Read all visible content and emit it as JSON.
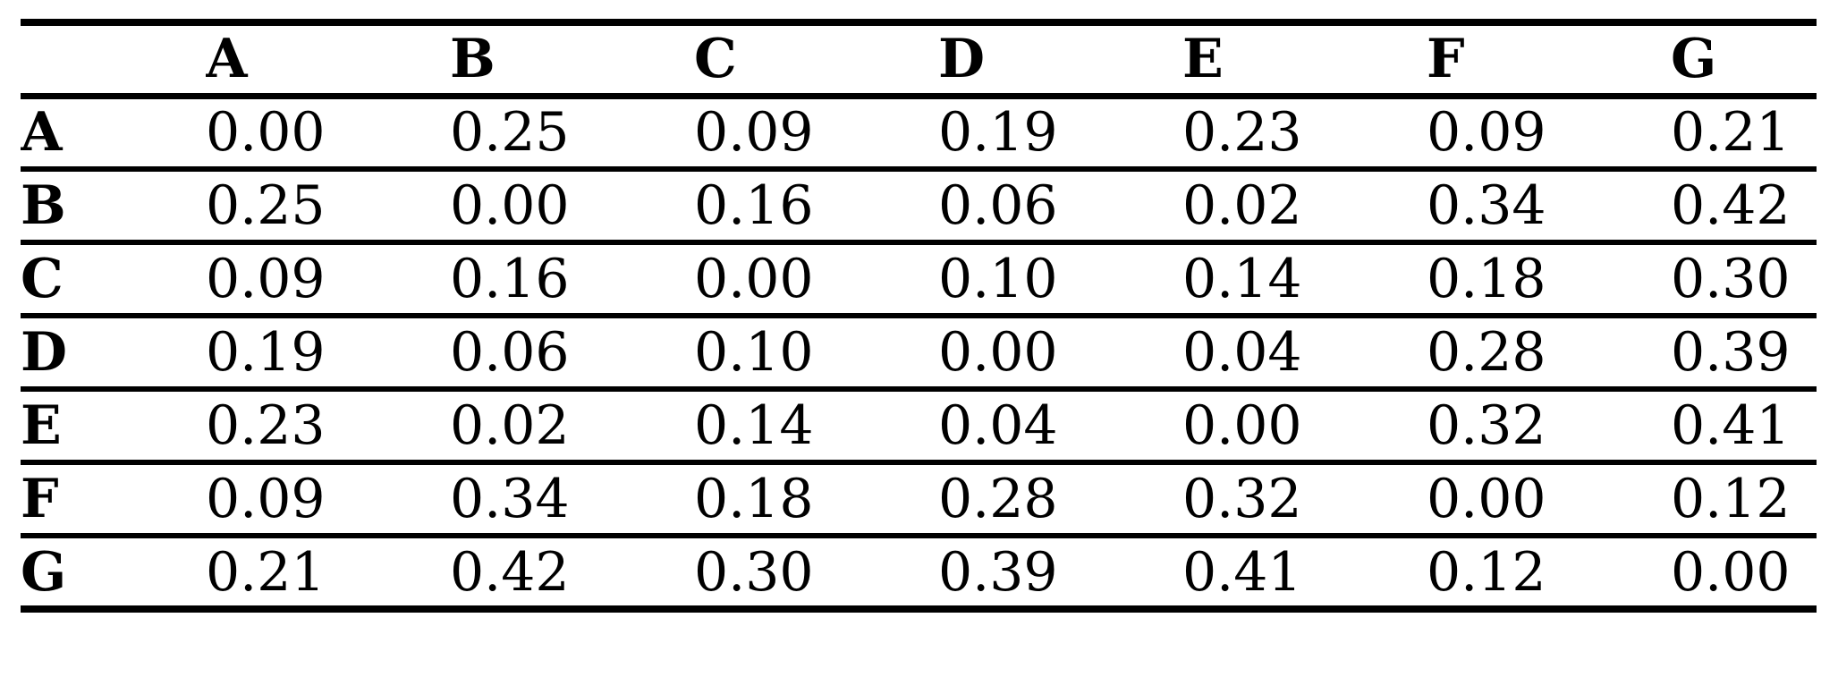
{
  "page": {
    "background_color": "#ffffff",
    "text_color": "#000000",
    "rule_color": "#000000"
  },
  "table": {
    "description": "symmetric pairwise distance matrix",
    "corner_label": "",
    "column_headers": [
      "A",
      "B",
      "C",
      "D",
      "E",
      "F",
      "G"
    ],
    "rows": [
      {
        "label": "A",
        "values": [
          "0.00",
          "0.25",
          "0.09",
          "0.19",
          "0.23",
          "0.09",
          "0.21"
        ]
      },
      {
        "label": "B",
        "values": [
          "0.25",
          "0.00",
          "0.16",
          "0.06",
          "0.02",
          "0.34",
          "0.42"
        ]
      },
      {
        "label": "C",
        "values": [
          "0.09",
          "0.16",
          "0.00",
          "0.10",
          "0.14",
          "0.18",
          "0.30"
        ]
      },
      {
        "label": "D",
        "values": [
          "0.19",
          "0.06",
          "0.10",
          "0.00",
          "0.04",
          "0.28",
          "0.39"
        ]
      },
      {
        "label": "E",
        "values": [
          "0.23",
          "0.02",
          "0.14",
          "0.04",
          "0.00",
          "0.32",
          "0.41"
        ]
      },
      {
        "label": "F",
        "values": [
          "0.09",
          "0.34",
          "0.18",
          "0.28",
          "0.32",
          "0.00",
          "0.12"
        ]
      },
      {
        "label": "G",
        "values": [
          "0.21",
          "0.42",
          "0.30",
          "0.39",
          "0.41",
          "0.12",
          "0.00"
        ]
      }
    ]
  }
}
